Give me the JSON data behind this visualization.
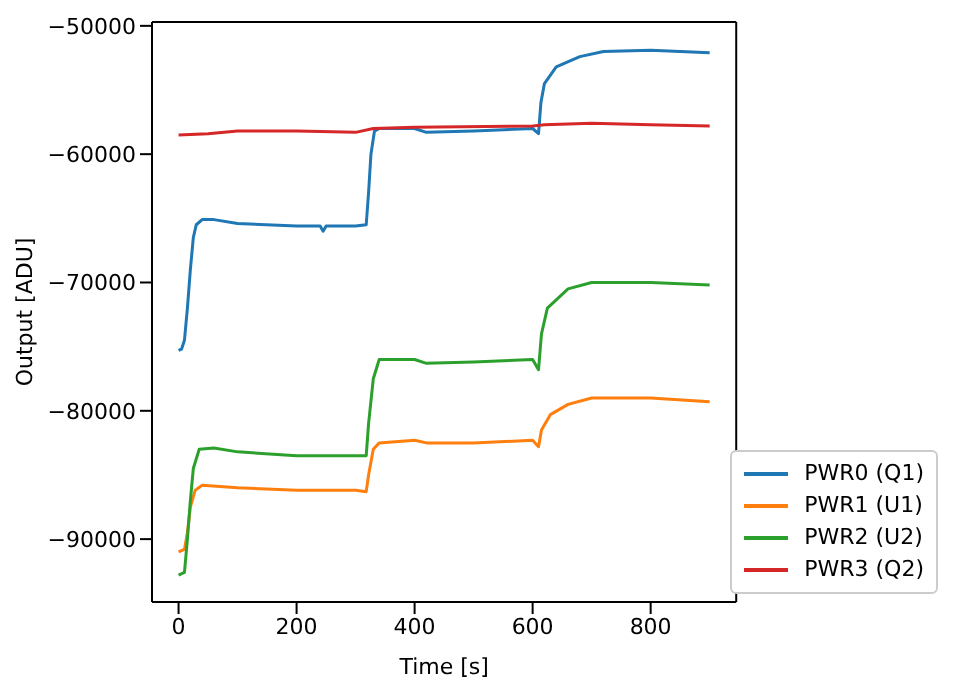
{
  "chart_data": {
    "type": "line",
    "xlabel": "Time [s]",
    "ylabel": "Output [ADU]",
    "xlim": [
      -45,
      945
    ],
    "xticks": [
      0,
      200,
      400,
      600,
      800
    ],
    "ylim": [
      -94900,
      -49700
    ],
    "yticks": [
      -90000,
      -80000,
      -70000,
      -60000,
      -50000
    ],
    "legend": "bottom right",
    "grid": false,
    "marker": "none",
    "series": [
      {
        "name": "PWR0 (Q1)",
        "color": "#1f77b4",
        "x": [
          0,
          5,
          10,
          15,
          20,
          25,
          30,
          40,
          60,
          100,
          200,
          240,
          245,
          250,
          300,
          318,
          322,
          326,
          332,
          340,
          400,
          420,
          500,
          600,
          610,
          614,
          620,
          640,
          680,
          720,
          800,
          850,
          900
        ],
        "values": [
          -75300,
          -75200,
          -74500,
          -72000,
          -69000,
          -66500,
          -65500,
          -65100,
          -65100,
          -65400,
          -65600,
          -65600,
          -66000,
          -65600,
          -65600,
          -65500,
          -63000,
          -60000,
          -58200,
          -58000,
          -58000,
          -58300,
          -58200,
          -58000,
          -58400,
          -56000,
          -54500,
          -53200,
          -52400,
          -52000,
          -51900,
          -52000,
          -52100
        ]
      },
      {
        "name": "PWR1 (U1)",
        "color": "#ff7f0e",
        "x": [
          0,
          10,
          15,
          20,
          28,
          40,
          100,
          200,
          300,
          318,
          322,
          330,
          340,
          400,
          420,
          500,
          600,
          610,
          615,
          630,
          660,
          700,
          800,
          900
        ],
        "values": [
          -91000,
          -90800,
          -89500,
          -87500,
          -86200,
          -85800,
          -86000,
          -86200,
          -86200,
          -86300,
          -85000,
          -83000,
          -82500,
          -82300,
          -82500,
          -82500,
          -82300,
          -82800,
          -81500,
          -80300,
          -79500,
          -79000,
          -79000,
          -79300
        ]
      },
      {
        "name": "PWR2 (U2)",
        "color": "#2ca02c",
        "x": [
          0,
          10,
          15,
          20,
          25,
          35,
          60,
          100,
          200,
          318,
          322,
          330,
          340,
          400,
          420,
          500,
          600,
          610,
          615,
          625,
          660,
          700,
          800,
          900
        ],
        "values": [
          -92800,
          -92600,
          -90000,
          -87000,
          -84500,
          -83000,
          -82900,
          -83200,
          -83500,
          -83500,
          -81000,
          -77500,
          -76000,
          -76000,
          -76300,
          -76200,
          -76000,
          -76800,
          -74000,
          -72000,
          -70500,
          -70000,
          -70000,
          -70200
        ]
      },
      {
        "name": "PWR3 (Q2)",
        "color": "#d62728",
        "x": [
          0,
          50,
          100,
          200,
          300,
          330,
          400,
          600,
          620,
          700,
          800,
          900
        ],
        "values": [
          -58500,
          -58400,
          -58200,
          -58200,
          -58300,
          -58000,
          -57900,
          -57800,
          -57700,
          -57600,
          -57700,
          -57800
        ]
      }
    ]
  }
}
